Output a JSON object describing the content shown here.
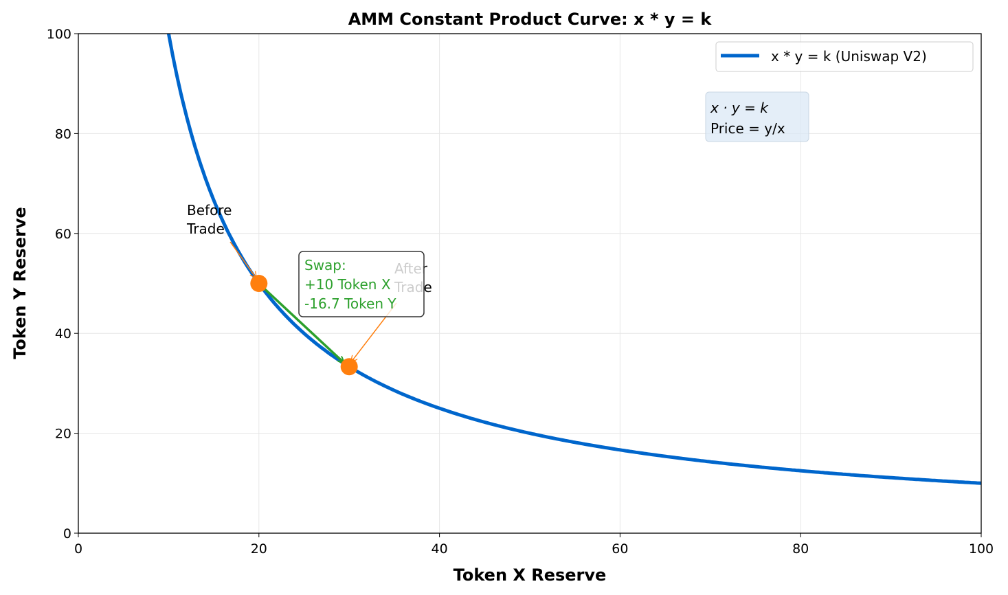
{
  "chart_data": {
    "type": "line",
    "title": "AMM Constant Product Curve: x * y = k",
    "xlabel": "Token X Reserve",
    "ylabel": "Token Y Reserve",
    "xlim": [
      0,
      100
    ],
    "ylim": [
      0,
      100
    ],
    "xticks": [
      0,
      20,
      40,
      60,
      80,
      100
    ],
    "yticks": [
      0,
      20,
      40,
      60,
      80,
      100
    ],
    "grid": true,
    "legend_position": "top-right",
    "series": [
      {
        "name": "x * y = k (Uniswap V2)",
        "k": 1000,
        "x_range": [
          10,
          100
        ],
        "color": "#0066cc"
      }
    ],
    "points": [
      {
        "label": "Before\nTrade",
        "x": 20,
        "y": 50,
        "color": "#ff7f0e"
      },
      {
        "label": "After\nTrade",
        "x": 30,
        "y": 33.33,
        "color": "#ff7f0e"
      }
    ],
    "annotations": {
      "before_lines": [
        "Before",
        "Trade"
      ],
      "after_lines": [
        "After",
        "Trade"
      ],
      "swap_lines": [
        "Swap:",
        "+10 Token X",
        "-16.7 Token Y"
      ],
      "swap_color": "#2ca02c",
      "formula_lines": [
        "x · y = k",
        "Price = y/x"
      ]
    }
  }
}
